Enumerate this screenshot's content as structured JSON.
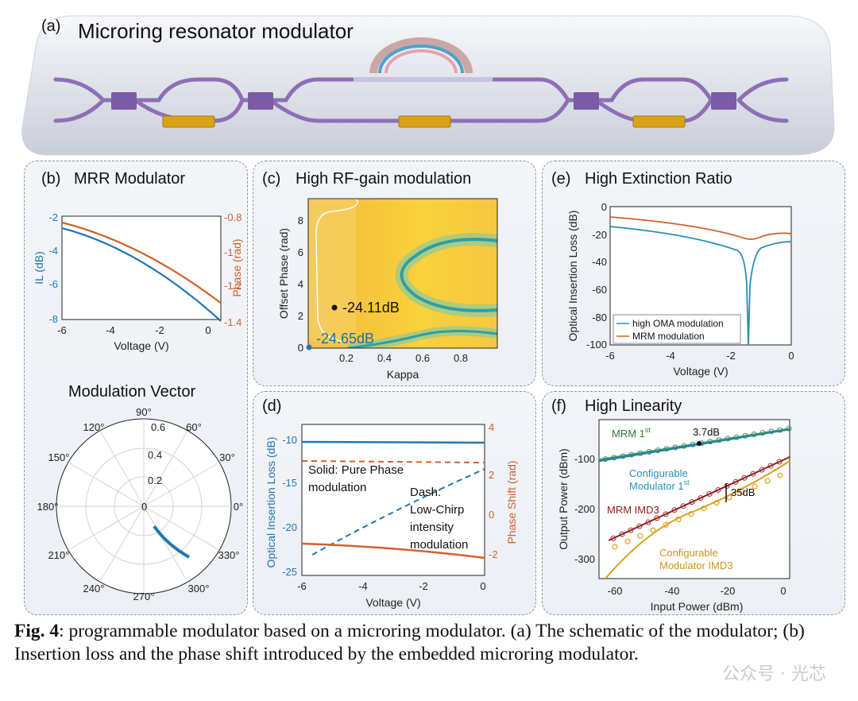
{
  "panel_a": {
    "label": "(a)",
    "title": "Microring resonator modulator"
  },
  "panel_b": {
    "label": "(b)",
    "title": "MRR Modulator",
    "chart": {
      "xlabel": "Voltage (V)",
      "ylabel_left": "IL (dB)",
      "ylabel_right": "Phase (rad)",
      "xticks": [
        "-6",
        "-4",
        "-2",
        "0"
      ],
      "yticks_left": [
        "-2",
        "-4",
        "-6",
        "-8"
      ],
      "yticks_right": [
        "-0.8",
        "-1",
        "-1.2",
        "-1.4"
      ]
    },
    "polar_title": "Modulation Vector",
    "polar_angles": [
      "90°",
      "60°",
      "30°",
      "0°",
      "330°",
      "300°",
      "270°",
      "240°",
      "210°",
      "180°",
      "150°",
      "120°"
    ],
    "polar_radii": [
      "0.6",
      "0.4",
      "0.2",
      "0"
    ]
  },
  "panel_c": {
    "label": "(c)",
    "title": "High RF-gain modulation",
    "xlabel": "Kappa",
    "ylabel": "Offset Phase (rad)",
    "xticks": [
      "0.2",
      "0.4",
      "0.6",
      "0.8"
    ],
    "yticks": [
      "0",
      "2",
      "4",
      "6",
      "8"
    ],
    "annot1": "-24.11dB",
    "annot2": "-24.65dB"
  },
  "panel_d": {
    "label": "(d)",
    "xlabel": "Voltage (V)",
    "ylabel_left": "Optical Insertion Loss (dB)",
    "ylabel_right": "Phase Shift (rad)",
    "xticks": [
      "-6",
      "-4",
      "-2",
      "0"
    ],
    "yticks_left": [
      "-10",
      "-15",
      "-20",
      "-25"
    ],
    "yticks_right": [
      "4",
      "2",
      "0",
      "-2"
    ],
    "text1a": "Solid: Pure Phase",
    "text1b": "modulation",
    "text2a": "Dash:",
    "text2b": "Low-Chirp",
    "text2c": "intensity",
    "text2d": "modulation"
  },
  "panel_e": {
    "label": "(e)",
    "title": "High Extinction Ratio",
    "xlabel": "Voltage (V)",
    "ylabel": "Optical Insertion Loss (dB)",
    "xticks": [
      "-6",
      "-4",
      "-2",
      "0"
    ],
    "yticks": [
      "0",
      "-20",
      "-40",
      "-60",
      "-80",
      "-100"
    ],
    "legend": [
      "high OMA modulation",
      "MRM modulation"
    ]
  },
  "panel_f": {
    "label": "(f)",
    "title": "High Linearity",
    "xlabel": "Input Power (dBm)",
    "ylabel": "Output Power (dBm)",
    "xticks": [
      "-60",
      "-40",
      "-20",
      "0"
    ],
    "yticks": [
      "-100",
      "-200",
      "-300"
    ],
    "ann_mrm1": "MRM 1",
    "ann_mrm1_sup": "st",
    "ann_37": "3.7dB",
    "ann_conf1a": "Configurable",
    "ann_conf1b": "Modulator  1",
    "ann_conf1b_sup": "st",
    "ann_35": "35dB",
    "ann_mrmimd3": "MRM IMD3",
    "ann_conf3a": "Configurable",
    "ann_conf3b": "Modulator  IMD3"
  },
  "caption": {
    "bold": "Fig. 4",
    "text": ": programmable modulator based on a microring modulator. (a) The schematic of the modulator; (b) Insertion loss and the phase shift introduced by the embedded microring modulator."
  },
  "watermark": "公众号 · 光芯",
  "colors": {
    "blue": "#1f77b4",
    "orange": "#d0622a",
    "purple": "#7b5aa6",
    "gold": "#d9a21b"
  }
}
